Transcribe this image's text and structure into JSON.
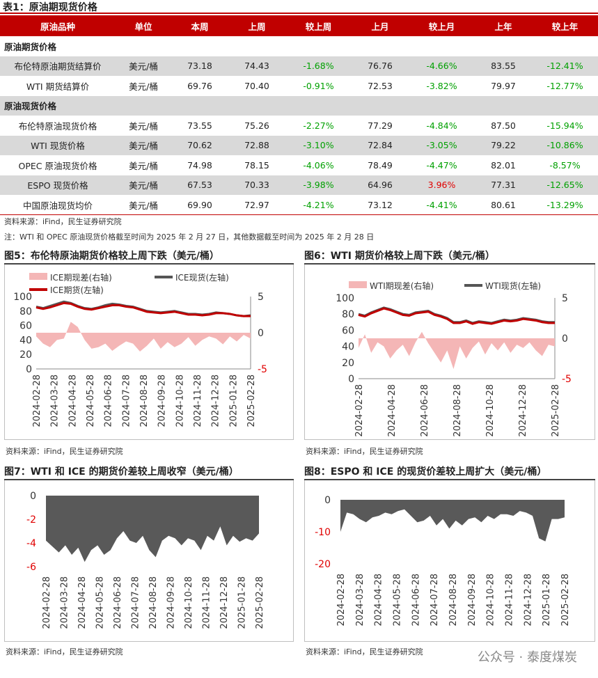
{
  "table_title": "表1：原油期现货价格",
  "headers": [
    "原油品种",
    "单位",
    "本周",
    "上周",
    "较上周",
    "上月",
    "较上月",
    "上年",
    "较上年"
  ],
  "section_futures": "原油期货价格",
  "section_spot": "原油现货价格",
  "rows_futures": [
    {
      "name": "布伦特原油期货结算价",
      "unit": "美元/桶",
      "cur": "73.18",
      "lw": "74.43",
      "cw": "-1.68%",
      "lm": "76.76",
      "cm": "-4.66%",
      "ly": "83.55",
      "cy": "-12.41%"
    },
    {
      "name": "WTI 期货结算价",
      "unit": "美元/桶",
      "cur": "69.76",
      "lw": "70.40",
      "cw": "-0.91%",
      "lm": "72.53",
      "cm": "-3.82%",
      "ly": "79.97",
      "cy": "-12.77%"
    }
  ],
  "rows_spot": [
    {
      "name": "布伦特原油现货价格",
      "unit": "美元/桶",
      "cur": "73.55",
      "lw": "75.26",
      "cw": "-2.27%",
      "lm": "77.29",
      "cm": "-4.84%",
      "ly": "87.50",
      "cy": "-15.94%"
    },
    {
      "name": "WTI 现货价格",
      "unit": "美元/桶",
      "cur": "70.62",
      "lw": "72.88",
      "cw": "-3.10%",
      "lm": "72.84",
      "cm": "-3.05%",
      "ly": "79.22",
      "cy": "-10.86%"
    },
    {
      "name": "OPEC 原油现货价格",
      "unit": "美元/桶",
      "cur": "74.98",
      "lw": "78.15",
      "cw": "-4.06%",
      "lm": "78.49",
      "cm": "-4.47%",
      "ly": "82.01",
      "cy": "-8.57%"
    },
    {
      "name": "ESPO 现货价格",
      "unit": "美元/桶",
      "cur": "67.53",
      "lw": "70.33",
      "cw": "-3.98%",
      "lm": "64.96",
      "cm": "3.96%",
      "ly": "77.31",
      "cy": "-12.65%"
    },
    {
      "name": "中国原油现货均价",
      "unit": "美元/桶",
      "cur": "69.90",
      "lw": "72.97",
      "cw": "-4.21%",
      "lm": "73.12",
      "cm": "-4.41%",
      "ly": "80.61",
      "cy": "-13.29%"
    }
  ],
  "source1": "资料来源：iFind，民生证券研究院",
  "note1": "注：WTI 和 OPEC 原油现货价格截至时间为 2025 年 2 月 27 日，其他数据截至时间为 2025 年 2 月 28 日",
  "colors": {
    "accent": "#c00000",
    "spread": "#f4b6b6",
    "spot": "#555555",
    "future": "#c00000",
    "area": "#595959",
    "neg": "#00a000"
  },
  "fig5_title": "图5：布伦特原油期货价格较上周下跌（美元/桶）",
  "fig6_title": "图6：WTI 期货价格较上周下跌（美元/桶）",
  "fig7_title": "图7：WTI 和 ICE 的期货价差较上周收窄（美元/桶）",
  "fig8_title": "图8：ESPO 和 ICE 的现货价差较上周扩大（美元/桶）",
  "source_fig": "资料来源：iFind，民生证券研究院",
  "watermark": "公众号 · 泰度煤炭",
  "chart_data": [
    {
      "type": "line",
      "legend": [
        "ICE期现差(右轴)",
        "ICE现货(左轴)",
        "ICE期货(左轴)"
      ],
      "x_ticks": [
        "2024-02-28",
        "2024-03-28",
        "2024-04-28",
        "2024-05-28",
        "2024-06-28",
        "2024-07-28",
        "2024-08-28",
        "2024-09-28",
        "2024-10-28",
        "2024-11-28",
        "2024-12-28",
        "2025-01-28",
        "2025-02-28"
      ],
      "y_left": [
        0,
        20,
        40,
        60,
        80,
        100
      ],
      "y_right": [
        5,
        0,
        -5
      ],
      "spot": [
        86,
        84,
        87,
        90,
        93,
        91,
        87,
        84,
        83,
        85,
        88,
        90,
        89,
        87,
        86,
        83,
        80,
        79,
        78,
        79,
        80,
        78,
        76,
        76,
        75,
        76,
        78,
        77,
        76,
        74,
        73,
        74
      ],
      "future": [
        85,
        83,
        85,
        88,
        91,
        90,
        86,
        83,
        82,
        84,
        86,
        88,
        88,
        86,
        85,
        82,
        79,
        78,
        77,
        78,
        79,
        77,
        75,
        75,
        74,
        75,
        77,
        77,
        76,
        74,
        73,
        73
      ],
      "spread": [
        -0.5,
        -1.5,
        -2,
        -1,
        -0.8,
        1.5,
        0.8,
        -1,
        -2.2,
        -2,
        -1.5,
        -2.5,
        -1.8,
        -1.2,
        -1.5,
        -2.6,
        -1.8,
        -0.8,
        -2.2,
        -1.3,
        -2,
        -1.5,
        -0.6,
        -1.8,
        -1,
        -0.5,
        -0.8,
        -1.6,
        -0.5,
        -1.2,
        -0.3,
        -0.8
      ]
    },
    {
      "type": "line",
      "legend": [
        "WTI期现差(右轴)",
        "WTI现货(左轴)"
      ],
      "x_ticks": [
        "2024-02-28",
        "2024-04-28",
        "2024-06-28",
        "2024-08-28",
        "2024-10-28",
        "2024-12-28",
        "2025-02-28"
      ],
      "y_left": [
        0,
        20,
        40,
        60,
        80,
        100
      ],
      "y_right": [
        5,
        0,
        -5
      ],
      "spot": [
        80,
        78,
        82,
        85,
        88,
        86,
        83,
        80,
        79,
        82,
        83,
        84,
        80,
        78,
        75,
        70,
        70,
        72,
        69,
        71,
        70,
        69,
        71,
        73,
        72,
        73,
        75,
        74,
        73,
        71,
        70,
        70
      ],
      "future": [
        79,
        77,
        81,
        84,
        87,
        85,
        82,
        79,
        78,
        81,
        82,
        83,
        79,
        77,
        74,
        69,
        69,
        71,
        68,
        70,
        69,
        68,
        70,
        72,
        71,
        72,
        74,
        73,
        72,
        70,
        69,
        69
      ],
      "spread": [
        -1.2,
        0.5,
        -1.8,
        -0.5,
        -1,
        -2.5,
        -1.5,
        -0.8,
        -2.2,
        -0.5,
        0.8,
        -0.6,
        -1.8,
        -3,
        -1.5,
        -3.8,
        -1,
        -2.5,
        -1.2,
        -0.4,
        -2,
        -0.6,
        -1.5,
        -0.5,
        -1.8,
        -0.8,
        -1.2,
        -0.5,
        -1.5,
        -2.2,
        -0.8,
        -1
      ]
    },
    {
      "type": "area",
      "x_ticks": [
        "2024-02-28",
        "2024-03-28",
        "2024-04-28",
        "2024-05-28",
        "2024-06-28",
        "2024-07-28",
        "2024-08-28",
        "2024-09-28",
        "2024-10-28",
        "2024-11-28",
        "2024-12-28",
        "2025-01-28",
        "2025-02-28"
      ],
      "y_ticks": [
        0,
        -2,
        -4,
        -6
      ],
      "values": [
        -3.8,
        -4.3,
        -4.8,
        -4.2,
        -5,
        -4.4,
        -5.6,
        -4.6,
        -4.2,
        -5,
        -4.6,
        -3.6,
        -3,
        -3.8,
        -4,
        -3.4,
        -4.6,
        -5.2,
        -3.8,
        -3.4,
        -3.6,
        -4.2,
        -3.6,
        -3.8,
        -4.6,
        -3.4,
        -3.8,
        -2.6,
        -4.2,
        -3.4,
        -3.9,
        -3.6,
        -3.8,
        -3.2
      ]
    },
    {
      "type": "area",
      "x_ticks": [
        "2024-02-28",
        "2024-03-28",
        "2024-04-28",
        "2024-05-28",
        "2024-06-28",
        "2024-07-28",
        "2024-08-28",
        "2024-09-28",
        "2024-10-28",
        "2024-11-28",
        "2024-12-28",
        "2025-01-28",
        "2025-02-28"
      ],
      "y_ticks": [
        0,
        -10,
        -20
      ],
      "values": [
        -10,
        -4,
        -4.5,
        -6,
        -7,
        -5.5,
        -5,
        -4,
        -4.5,
        -3.5,
        -3,
        -5,
        -7,
        -6.5,
        -5,
        -8,
        -6,
        -9,
        -6.5,
        -8,
        -6,
        -5.5,
        -7,
        -5,
        -6,
        -4.5,
        -4.5,
        -5,
        -3.5,
        -4,
        -5,
        -12,
        -13,
        -6,
        -6,
        -5.5
      ]
    }
  ]
}
